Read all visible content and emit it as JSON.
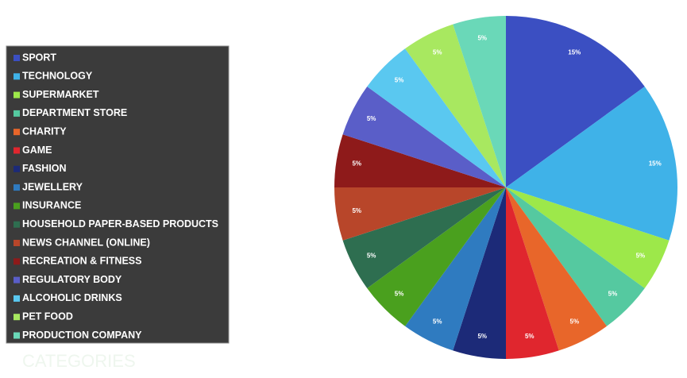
{
  "chart_data": {
    "type": "pie",
    "title": "CATEGORIES",
    "categories": [
      "SPORT",
      "TECHNOLOGY",
      "SUPERMARKET",
      "DEPARTMENT STORE",
      "CHARITY",
      "GAME",
      "FASHION",
      "JEWELLERY",
      "INSURANCE",
      "HOUSEHOLD PAPER-BASED PRODUCTS",
      "NEWS CHANNEL (ONLINE)",
      "RECREATION & FITNESS",
      "REGULATORY BODY",
      "ALCOHOLIC DRINKS",
      "PET FOOD",
      "PRODUCTION COMPANY"
    ],
    "values": [
      15,
      15,
      5,
      5,
      5,
      5,
      5,
      5,
      5,
      5,
      5,
      5,
      5,
      5,
      5,
      5
    ],
    "value_labels": [
      "15%",
      "15%",
      "5%",
      "5%",
      "5%",
      "5%",
      "5%",
      "5%",
      "5%",
      "5%",
      "5%",
      "5%",
      "5%",
      "5%",
      "5%",
      "5%"
    ],
    "colors": [
      "#3b4fc2",
      "#3fb2e8",
      "#9de84a",
      "#55c9a0",
      "#e8662a",
      "#e0262e",
      "#1c2a78",
      "#2f7bc0",
      "#4aa01e",
      "#2e6e50",
      "#b8462a",
      "#8e1a1a",
      "#5a5ec8",
      "#5ac8f0",
      "#a8e860",
      "#6ad8b8"
    ],
    "legend": "left"
  }
}
